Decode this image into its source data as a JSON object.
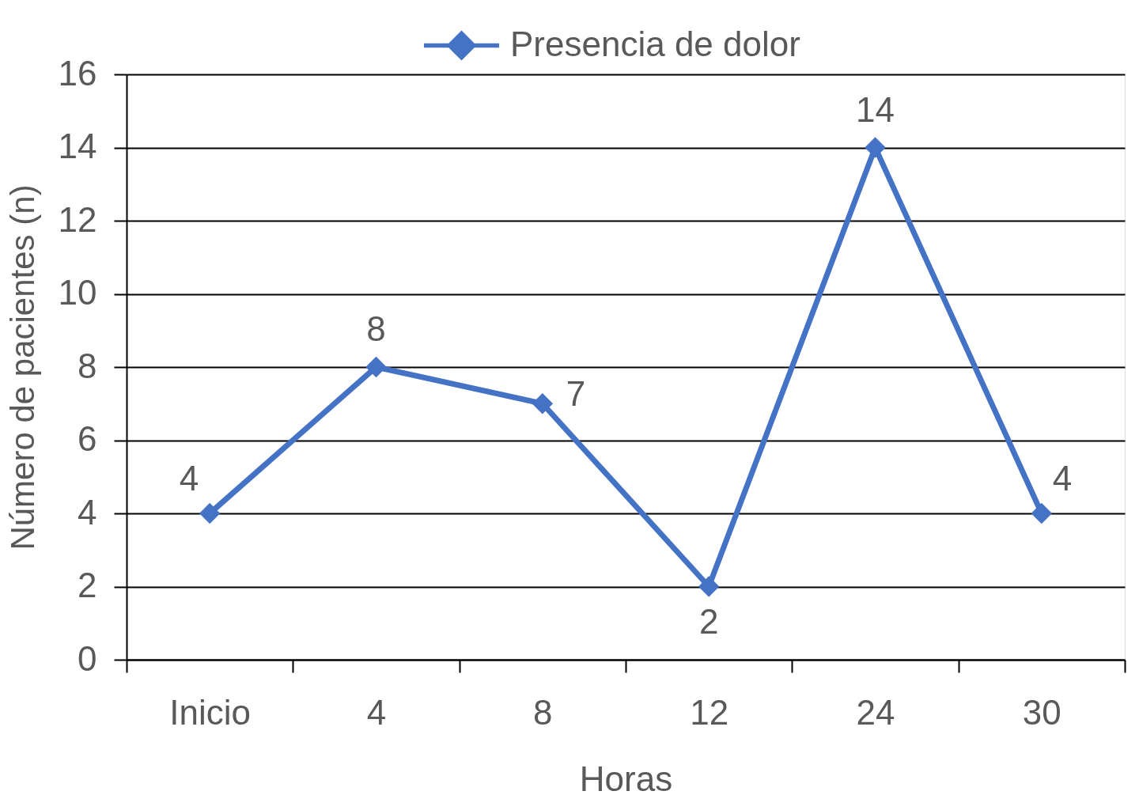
{
  "chart_data": {
    "type": "line",
    "xlabel": "Horas",
    "ylabel": "Número de pacientes (n)",
    "categories": [
      "Inicio",
      "4",
      "8",
      "12",
      "24",
      "30"
    ],
    "series": [
      {
        "name": "Presencia de dolor",
        "color": "#4472c4",
        "values": [
          4,
          8,
          7,
          2,
          14,
          4
        ]
      }
    ],
    "ylim": [
      0,
      16
    ],
    "yticks": [
      0,
      2,
      4,
      6,
      8,
      10,
      12,
      14,
      16
    ],
    "grid": "y",
    "legend": "top",
    "marker": "diamond",
    "line_style": "solid",
    "data_labels": true
  }
}
